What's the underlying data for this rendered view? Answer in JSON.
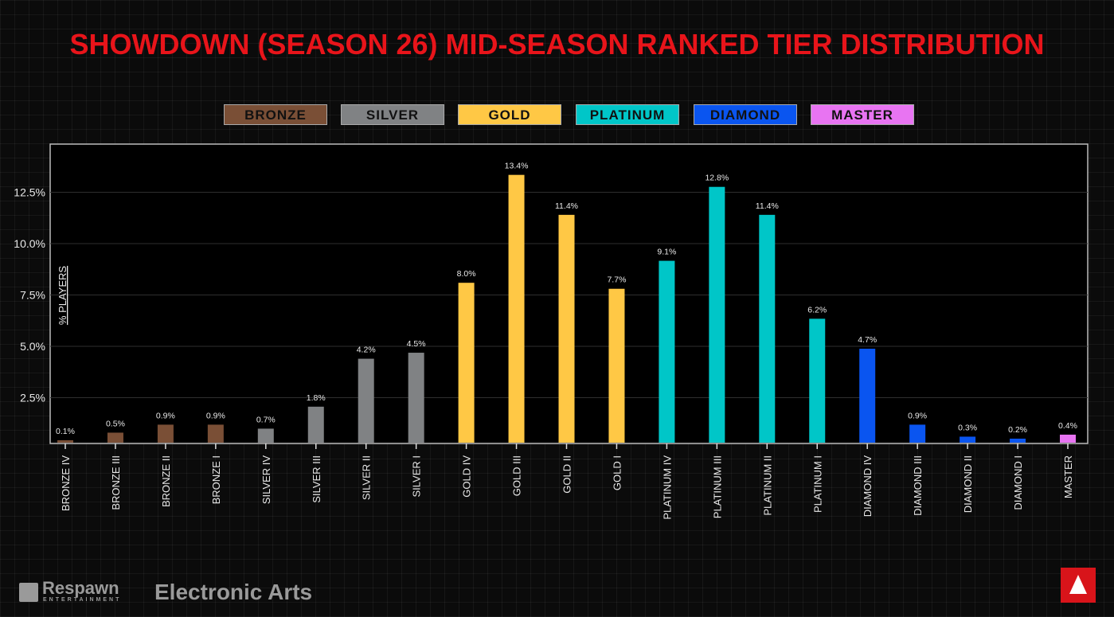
{
  "title": "SHOWDOWN (SEASON 26) MID-SEASON RANKED TIER DISTRIBUTION",
  "legend": [
    {
      "label": "BRONZE",
      "color": "#7a4f36"
    },
    {
      "label": "SILVER",
      "color": "#808284"
    },
    {
      "label": "GOLD",
      "color": "#ffc845"
    },
    {
      "label": "PLATINUM",
      "color": "#00c6c8"
    },
    {
      "label": "DIAMOND",
      "color": "#0a55f0"
    },
    {
      "label": "MASTER",
      "color": "#e874f2"
    }
  ],
  "chart_data": {
    "type": "bar",
    "title": "SHOWDOWN (SEASON 26) MID-SEASON RANKED TIER DISTRIBUTION",
    "ylabel": "% PLAYERS",
    "xlabel": "",
    "ylim": [
      0,
      14.5
    ],
    "yticks": [
      "2.5%",
      "5.0%",
      "7.5%",
      "10.0%",
      "12.5%"
    ],
    "ytick_values": [
      2.5,
      5,
      7.5,
      10,
      12.5
    ],
    "grid": true,
    "categories": [
      "BRONZE IV",
      "BRONZE III",
      "BRONZE II",
      "BRONZE I",
      "SILVER IV",
      "SILVER III",
      "SILVER II",
      "SILVER I",
      "GOLD IV",
      "GOLD III",
      "GOLD II",
      "GOLD I",
      "PLATINUM IV",
      "PLATINUM III",
      "PLATINUM II",
      "PLATINUM I",
      "DIAMOND IV",
      "DIAMOND III",
      "DIAMOND II",
      "DIAMOND I",
      "MASTER"
    ],
    "values": [
      0.1,
      0.5,
      0.9,
      0.9,
      0.7,
      1.8,
      4.2,
      4.5,
      8.0,
      13.4,
      11.4,
      7.7,
      9.1,
      12.8,
      11.4,
      6.2,
      4.7,
      0.9,
      0.3,
      0.2,
      0.4
    ],
    "labels": [
      "0.1%",
      "0.5%",
      "0.9%",
      "0.9%",
      "0.7%",
      "1.8%",
      "4.2%",
      "4.5%",
      "8.0%",
      "13.4%",
      "11.4%",
      "7.7%",
      "9.1%",
      "12.8%",
      "11.4%",
      "6.2%",
      "4.7%",
      "0.9%",
      "0.3%",
      "0.2%",
      "0.4%"
    ],
    "tiers": [
      0,
      0,
      0,
      0,
      1,
      1,
      1,
      1,
      2,
      2,
      2,
      2,
      3,
      3,
      3,
      3,
      4,
      4,
      4,
      4,
      5
    ]
  },
  "logos": {
    "respawn": "Respawn",
    "respawn_sub": "ENTERTAINMENT",
    "ea": "Electronic Arts"
  }
}
